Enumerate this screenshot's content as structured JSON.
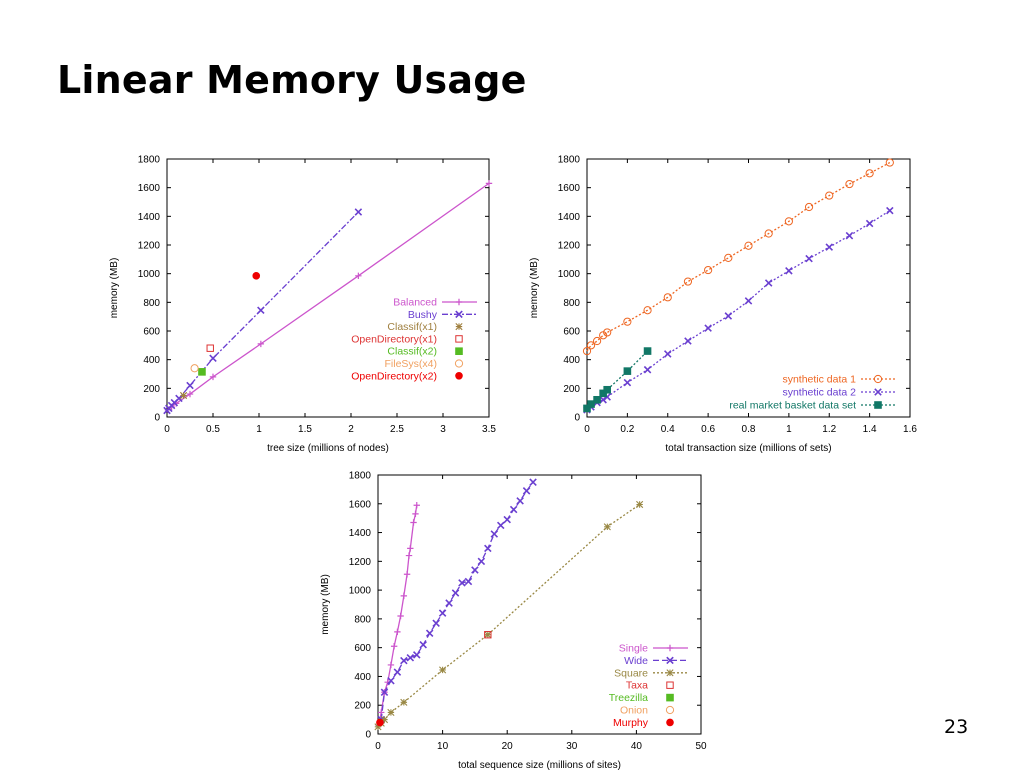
{
  "slide": {
    "title": "Linear Memory Usage",
    "page_number": "23"
  },
  "chart_data": [
    {
      "type": "line",
      "xlabel": "tree size (millions of nodes)",
      "ylabel": "memory (MB)",
      "xlim": [
        0,
        3.5
      ],
      "ylim": [
        0,
        1800
      ],
      "xticks": [
        "0",
        "0.5",
        "1",
        "1.5",
        "2",
        "2.5",
        "3",
        "3.5"
      ],
      "yticks": [
        "0",
        "200",
        "400",
        "600",
        "800",
        "1000",
        "1200",
        "1400",
        "1600",
        "1800"
      ],
      "grid": false,
      "legend_position": "right",
      "series": [
        {
          "name": "Balanced",
          "color": "#cc55cc",
          "line": "solid",
          "marker": "plus",
          "points": [
            [
              0.01,
              50
            ],
            [
              0.05,
              70
            ],
            [
              0.1,
              95
            ],
            [
              0.25,
              160
            ],
            [
              0.5,
              280
            ],
            [
              1.02,
              510
            ],
            [
              2.08,
              985
            ],
            [
              3.5,
              1630
            ]
          ]
        },
        {
          "name": "Bushy",
          "color": "#6a3fd0",
          "line": "dashdot",
          "marker": "x",
          "points": [
            [
              0.0,
              45
            ],
            [
              0.02,
              60
            ],
            [
              0.05,
              80
            ],
            [
              0.08,
              100
            ],
            [
              0.13,
              130
            ],
            [
              0.25,
              220
            ],
            [
              0.5,
              410
            ],
            [
              1.02,
              745
            ],
            [
              2.08,
              1430
            ]
          ]
        },
        {
          "name": "Classif(x1)",
          "color": "#a08040",
          "line": "none",
          "marker": "star",
          "points": [
            [
              0.18,
              150
            ]
          ]
        },
        {
          "name": "OpenDirectory(x1)",
          "color": "#dd3333",
          "line": "none",
          "marker": "square-open",
          "points": [
            [
              0.47,
              480
            ]
          ]
        },
        {
          "name": "Classif(x2)",
          "color": "#55bb22",
          "line": "none",
          "marker": "square-filled",
          "points": [
            [
              0.38,
              315
            ]
          ]
        },
        {
          "name": "FileSys(x4)",
          "color": "#f0a060",
          "line": "none",
          "marker": "circle-open",
          "points": [
            [
              0.3,
              340
            ]
          ]
        },
        {
          "name": "OpenDirectory(x2)",
          "color": "#ee0000",
          "line": "none",
          "marker": "circle-filled",
          "points": [
            [
              0.97,
              985
            ]
          ]
        }
      ]
    },
    {
      "type": "line",
      "xlabel": "total transaction size (millions of sets)",
      "ylabel": "memory (MB)",
      "xlim": [
        0,
        1.6
      ],
      "ylim": [
        0,
        1800
      ],
      "xticks": [
        "0",
        "0.2",
        "0.4",
        "0.6",
        "0.8",
        "1",
        "1.2",
        "1.4",
        "1.6"
      ],
      "yticks": [
        "0",
        "200",
        "400",
        "600",
        "800",
        "1000",
        "1200",
        "1400",
        "1600",
        "1800"
      ],
      "grid": false,
      "legend_position": "bottom-right",
      "series": [
        {
          "name": "synthetic data 1",
          "color": "#ee6622",
          "line": "dotted",
          "marker": "circle-open",
          "points": [
            [
              0.0,
              460
            ],
            [
              0.02,
              500
            ],
            [
              0.05,
              530
            ],
            [
              0.08,
              570
            ],
            [
              0.1,
              590
            ],
            [
              0.2,
              665
            ],
            [
              0.3,
              745
            ],
            [
              0.4,
              835
            ],
            [
              0.5,
              945
            ],
            [
              0.6,
              1025
            ],
            [
              0.7,
              1110
            ],
            [
              0.8,
              1195
            ],
            [
              0.9,
              1280
            ],
            [
              1.0,
              1365
            ],
            [
              1.1,
              1465
            ],
            [
              1.2,
              1545
            ],
            [
              1.3,
              1625
            ],
            [
              1.4,
              1700
            ],
            [
              1.5,
              1775
            ]
          ]
        },
        {
          "name": "synthetic data 2",
          "color": "#6a3fd0",
          "line": "dotted",
          "marker": "x",
          "points": [
            [
              0.0,
              50
            ],
            [
              0.02,
              70
            ],
            [
              0.05,
              100
            ],
            [
              0.08,
              120
            ],
            [
              0.1,
              140
            ],
            [
              0.2,
              240
            ],
            [
              0.3,
              330
            ],
            [
              0.4,
              440
            ],
            [
              0.5,
              530
            ],
            [
              0.6,
              620
            ],
            [
              0.7,
              705
            ],
            [
              0.8,
              810
            ],
            [
              0.9,
              935
            ],
            [
              1.0,
              1020
            ],
            [
              1.1,
              1105
            ],
            [
              1.2,
              1185
            ],
            [
              1.3,
              1265
            ],
            [
              1.4,
              1350
            ],
            [
              1.5,
              1440
            ]
          ]
        },
        {
          "name": "real market basket data set",
          "color": "#117766",
          "line": "dotted",
          "marker": "square-filled",
          "points": [
            [
              0.0,
              60
            ],
            [
              0.02,
              90
            ],
            [
              0.05,
              120
            ],
            [
              0.08,
              165
            ],
            [
              0.1,
              190
            ],
            [
              0.2,
              320
            ],
            [
              0.3,
              460
            ]
          ]
        }
      ]
    },
    {
      "type": "line",
      "xlabel": "total sequence size (millions of sites)",
      "ylabel": "memory (MB)",
      "xlim": [
        0,
        50
      ],
      "ylim": [
        0,
        1800
      ],
      "xticks": [
        "0",
        "10",
        "20",
        "30",
        "40",
        "50"
      ],
      "yticks": [
        "0",
        "200",
        "400",
        "600",
        "800",
        "1000",
        "1200",
        "1400",
        "1600",
        "1800"
      ],
      "grid": false,
      "legend_position": "bottom-right",
      "series": [
        {
          "name": "Single",
          "color": "#cc55cc",
          "line": "solid",
          "marker": "plus",
          "points": [
            [
              0.1,
              60
            ],
            [
              0.5,
              150
            ],
            [
              1,
              290
            ],
            [
              1.5,
              360
            ],
            [
              2,
              480
            ],
            [
              2.5,
              610
            ],
            [
              3,
              710
            ],
            [
              3.5,
              820
            ],
            [
              4,
              960
            ],
            [
              4.5,
              1110
            ],
            [
              4.8,
              1240
            ],
            [
              5,
              1290
            ],
            [
              5.5,
              1470
            ],
            [
              5.8,
              1530
            ],
            [
              6,
              1590
            ]
          ]
        },
        {
          "name": "Wide",
          "color": "#6a3fd0",
          "line": "dashed",
          "marker": "x",
          "points": [
            [
              0.5,
              100
            ],
            [
              1,
              290
            ],
            [
              2,
              370
            ],
            [
              3,
              430
            ],
            [
              4,
              510
            ],
            [
              5,
              530
            ],
            [
              6,
              550
            ],
            [
              7,
              620
            ],
            [
              8,
              700
            ],
            [
              9,
              770
            ],
            [
              10,
              840
            ],
            [
              11,
              910
            ],
            [
              12,
              980
            ],
            [
              13,
              1050
            ],
            [
              14,
              1060
            ],
            [
              15,
              1140
            ],
            [
              16,
              1200
            ],
            [
              17,
              1290
            ],
            [
              18,
              1390
            ],
            [
              19,
              1450
            ],
            [
              20,
              1490
            ],
            [
              21,
              1560
            ],
            [
              22,
              1620
            ],
            [
              23,
              1690
            ],
            [
              24,
              1750
            ]
          ]
        },
        {
          "name": "Square",
          "color": "#998844",
          "line": "dotted",
          "marker": "star",
          "points": [
            [
              0,
              50
            ],
            [
              0.5,
              75
            ],
            [
              1,
              100
            ],
            [
              2,
              150
            ],
            [
              4,
              220
            ],
            [
              10,
              445
            ],
            [
              17,
              690
            ],
            [
              35.5,
              1440
            ],
            [
              40.5,
              1595
            ]
          ]
        },
        {
          "name": "Taxa",
          "color": "#dd3333",
          "line": "none",
          "marker": "square-open",
          "points": [
            [
              17,
              690
            ]
          ]
        },
        {
          "name": "Treezilla",
          "color": "#55bb22",
          "line": "none",
          "marker": "square-filled",
          "points": []
        },
        {
          "name": "Onion",
          "color": "#f0a060",
          "line": "none",
          "marker": "circle-open",
          "points": []
        },
        {
          "name": "Murphy",
          "color": "#ee0000",
          "line": "none",
          "marker": "circle-filled",
          "points": [
            [
              0.3,
              80
            ]
          ]
        }
      ]
    }
  ]
}
